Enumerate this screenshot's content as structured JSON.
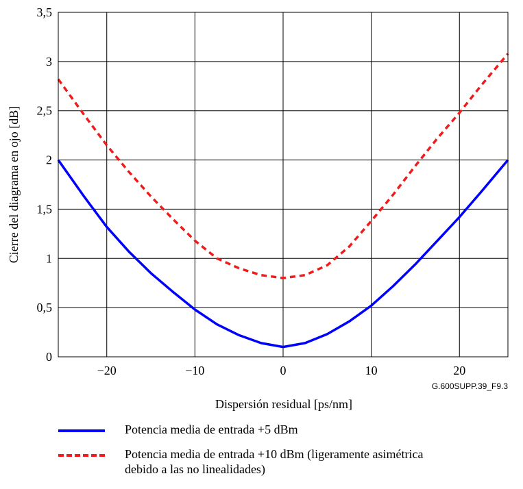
{
  "chart_data": {
    "type": "line",
    "xlabel": "Dispersión residual [ps/nm]",
    "ylabel": "Cierre del diagrama en ojo [dB]",
    "figure_id": "G.600SUPP.39_F9.3",
    "xlim": [
      -25.5,
      25.5
    ],
    "ylim": [
      0,
      3.5
    ],
    "x_ticks": [
      -20,
      -10,
      0,
      10,
      20
    ],
    "x_tick_labels": [
      "−20",
      "−10",
      "0",
      "10",
      "20"
    ],
    "y_ticks": [
      0,
      0.5,
      1,
      1.5,
      2,
      2.5,
      3,
      3.5
    ],
    "y_tick_labels": [
      "0",
      "0,5",
      "1",
      "1,5",
      "2",
      "2,5",
      "3",
      "3,5"
    ],
    "grid": true,
    "legend_position": "below",
    "series": [
      {
        "name": "Potencia media de entrada +5 dBm",
        "color": "#0000ff",
        "style": "solid",
        "x": [
          -25.5,
          -22.5,
          -20,
          -17.5,
          -15,
          -12.5,
          -10,
          -7.5,
          -5,
          -2.5,
          0,
          2.5,
          5,
          7.5,
          10,
          12.5,
          15,
          17.5,
          20,
          22.5,
          25.5
        ],
        "y": [
          2.0,
          1.62,
          1.32,
          1.07,
          0.85,
          0.66,
          0.48,
          0.33,
          0.22,
          0.14,
          0.1,
          0.14,
          0.23,
          0.36,
          0.52,
          0.72,
          0.94,
          1.18,
          1.42,
          1.68,
          2.0
        ]
      },
      {
        "name": "Potencia media de entrada +10 dBm (ligeramente asimétrica debido a las no linealidades)",
        "name_lines": [
          "Potencia media de entrada +10 dBm (ligeramente asimétrica",
          "debido a las no linealidades)"
        ],
        "color": "#ee1c1c",
        "style": "dashed",
        "x": [
          -25.5,
          -22.5,
          -20,
          -17.5,
          -15,
          -12.5,
          -10,
          -7.5,
          -5,
          -2.5,
          0,
          2.5,
          5,
          7.5,
          10,
          12.5,
          15,
          17.5,
          20,
          22.5,
          25.5
        ],
        "y": [
          2.82,
          2.45,
          2.15,
          1.88,
          1.63,
          1.4,
          1.18,
          1.0,
          0.9,
          0.83,
          0.8,
          0.83,
          0.93,
          1.12,
          1.38,
          1.65,
          1.94,
          2.22,
          2.48,
          2.76,
          3.08
        ]
      }
    ]
  }
}
